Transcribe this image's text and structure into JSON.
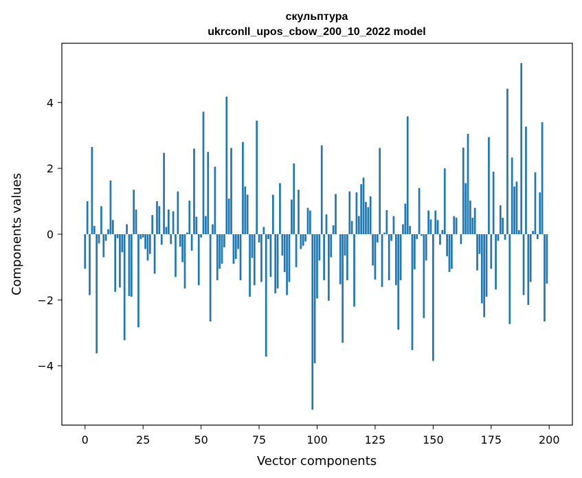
{
  "chart_data": {
    "type": "bar",
    "title": "скульптура",
    "subtitle": "ukrconll_upos_cbow_200_10_2022 model",
    "xlabel": "Vector components",
    "ylabel": "Components values",
    "xlim": [
      -10,
      210
    ],
    "ylim": [
      -5.8,
      5.8
    ],
    "xticks": [
      0,
      25,
      50,
      75,
      100,
      125,
      150,
      175,
      200
    ],
    "xtick_labels": [
      "0",
      "25",
      "50",
      "75",
      "100",
      "125",
      "150",
      "175",
      "200"
    ],
    "yticks": [
      -4,
      -2,
      0,
      2,
      4
    ],
    "ytick_labels": [
      "−4",
      "−2",
      "0",
      "2",
      "4"
    ],
    "grid": false,
    "bar_color": "#1f77b4",
    "x": [
      0,
      1,
      2,
      3,
      4,
      5,
      6,
      7,
      8,
      9,
      10,
      11,
      12,
      13,
      14,
      15,
      16,
      17,
      18,
      19,
      20,
      21,
      22,
      23,
      24,
      25,
      26,
      27,
      28,
      29,
      30,
      31,
      32,
      33,
      34,
      35,
      36,
      37,
      38,
      39,
      40,
      41,
      42,
      43,
      44,
      45,
      46,
      47,
      48,
      49,
      50,
      51,
      52,
      53,
      54,
      55,
      56,
      57,
      58,
      59,
      60,
      61,
      62,
      63,
      64,
      65,
      66,
      67,
      68,
      69,
      70,
      71,
      72,
      73,
      74,
      75,
      76,
      77,
      78,
      79,
      80,
      81,
      82,
      83,
      84,
      85,
      86,
      87,
      88,
      89,
      90,
      91,
      92,
      93,
      94,
      95,
      96,
      97,
      98,
      99,
      100,
      101,
      102,
      103,
      104,
      105,
      106,
      107,
      108,
      109,
      110,
      111,
      112,
      113,
      114,
      115,
      116,
      117,
      118,
      119,
      120,
      121,
      122,
      123,
      124,
      125,
      126,
      127,
      128,
      129,
      130,
      131,
      132,
      133,
      134,
      135,
      136,
      137,
      138,
      139,
      140,
      141,
      142,
      143,
      144,
      145,
      146,
      147,
      148,
      149,
      150,
      151,
      152,
      153,
      154,
      155,
      156,
      157,
      158,
      159,
      160,
      161,
      162,
      163,
      164,
      165,
      166,
      167,
      168,
      169,
      170,
      171,
      172,
      173,
      174,
      175,
      176,
      177,
      178,
      179,
      180,
      181,
      182,
      183,
      184,
      185,
      186,
      187,
      188,
      189,
      190,
      191,
      192,
      193,
      194,
      195,
      196,
      197,
      198,
      199
    ],
    "values": [
      -1.05,
      1.0,
      -1.85,
      2.65,
      0.25,
      -3.62,
      -0.28,
      0.85,
      -0.7,
      -0.2,
      0.15,
      1.63,
      0.43,
      -1.75,
      -0.12,
      -1.62,
      -0.55,
      -3.22,
      0.3,
      -1.88,
      -1.9,
      1.35,
      0.75,
      -2.83,
      -0.15,
      -0.1,
      -0.45,
      -0.8,
      -0.6,
      0.58,
      -1.2,
      1.0,
      0.85,
      -0.32,
      2.47,
      0.22,
      0.75,
      -0.3,
      0.7,
      -1.3,
      1.3,
      -0.38,
      -0.85,
      -1.65,
      0.05,
      1.02,
      -0.5,
      2.6,
      0.53,
      -1.55,
      -0.1,
      3.72,
      0.55,
      2.5,
      -2.65,
      0.3,
      2.05,
      -1.4,
      -1.05,
      -0.9,
      -0.4,
      4.18,
      1.08,
      2.62,
      -0.9,
      -0.75,
      -0.45,
      -1.4,
      2.8,
      1.45,
      1.2,
      -1.9,
      -0.72,
      -1.55,
      3.45,
      -0.25,
      -1.45,
      0.22,
      -3.72,
      -0.15,
      -1.3,
      1.2,
      -1.8,
      -1.65,
      1.55,
      -0.65,
      -1.15,
      -1.85,
      -1.45,
      1.05,
      2.15,
      -1.0,
      1.35,
      -0.45,
      -0.35,
      -0.22,
      0.8,
      0.72,
      -5.33,
      -3.92,
      -1.95,
      -0.8,
      2.7,
      -1.4,
      0.6,
      -2.02,
      -0.7,
      0.27,
      1.22,
      0.0,
      -1.52,
      -3.3,
      -0.65,
      -1.4,
      1.3,
      0.4,
      -2.2,
      1.27,
      0.55,
      1.52,
      1.72,
      0.98,
      0.82,
      1.15,
      -0.95,
      -1.38,
      -0.25,
      2.62,
      -1.6,
      0.05,
      0.73,
      -1.4,
      -0.2,
      0.55,
      -1.55,
      -2.9,
      -1.4,
      0.3,
      0.93,
      3.58,
      0.25,
      -3.52,
      -1.07,
      -0.15,
      1.4,
      -0.05,
      -2.55,
      -0.8,
      0.72,
      0.45,
      -3.85,
      0.72,
      0.43,
      -0.32,
      0.13,
      2.0,
      -0.67,
      -1.15,
      -1.05,
      0.55,
      0.5,
      0.0,
      -0.3,
      2.63,
      1.55,
      3.05,
      1.02,
      0.5,
      0.8,
      -1.1,
      -0.6,
      -2.1,
      -2.52,
      -1.9,
      2.95,
      -1.05,
      1.9,
      -1.68,
      -0.2,
      0.88,
      0.5,
      -0.17,
      4.42,
      -2.73,
      2.33,
      1.45,
      1.6,
      0.12,
      5.2,
      -1.85,
      3.27,
      -2.15,
      -1.45,
      0.1,
      1.88,
      -0.15,
      1.27,
      3.4,
      -2.65,
      -1.5
    ]
  }
}
